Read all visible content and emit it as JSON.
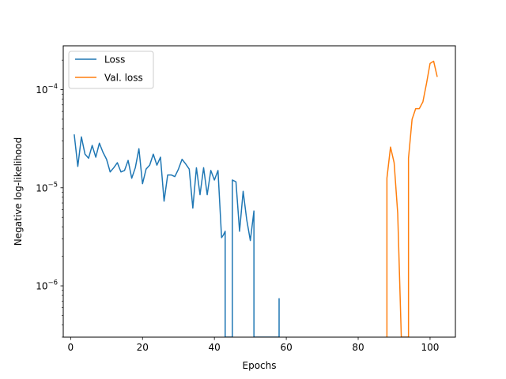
{
  "chart_data": {
    "type": "line",
    "title": "",
    "xlabel": "Epochs",
    "ylabel": "Negative log-likelihood",
    "xlim": [
      -2.05,
      107.05
    ],
    "ylim": [
      3e-07,
      0.00028
    ],
    "yscale": "log",
    "xticks": [
      0,
      20,
      40,
      60,
      80,
      100
    ],
    "yticks": [
      {
        "value": 1e-06,
        "base": "10",
        "exp": "−6"
      },
      {
        "value": 1e-05,
        "base": "10",
        "exp": "−5"
      },
      {
        "value": 0.0001,
        "base": "10",
        "exp": "−4"
      }
    ],
    "grid": false,
    "legend": "top-left",
    "series": [
      {
        "name": "Loss",
        "color": "#1f77b4",
        "points": [
          [
            1,
            3.5e-05
          ],
          [
            2,
            1.65e-05
          ],
          [
            3,
            3.3e-05
          ],
          [
            4,
            2.2e-05
          ],
          [
            5,
            2e-05
          ],
          [
            6,
            2.7e-05
          ],
          [
            7,
            2.05e-05
          ],
          [
            8,
            2.85e-05
          ],
          [
            9,
            2.3e-05
          ],
          [
            10,
            1.95e-05
          ],
          [
            11,
            1.45e-05
          ],
          [
            12,
            1.6e-05
          ],
          [
            13,
            1.8e-05
          ],
          [
            14,
            1.45e-05
          ],
          [
            15,
            1.5e-05
          ],
          [
            16,
            1.9e-05
          ],
          [
            17,
            1.25e-05
          ],
          [
            18,
            1.6e-05
          ],
          [
            19,
            2.5e-05
          ],
          [
            20,
            1.1e-05
          ],
          [
            21,
            1.55e-05
          ],
          [
            22,
            1.7e-05
          ],
          [
            23,
            2.2e-05
          ],
          [
            24,
            1.7e-05
          ],
          [
            25,
            2.05e-05
          ],
          [
            26,
            7.3e-06
          ],
          [
            27,
            1.35e-05
          ],
          [
            28,
            1.35e-05
          ],
          [
            29,
            1.3e-05
          ],
          [
            30,
            1.55e-05
          ],
          [
            31,
            1.95e-05
          ],
          [
            32,
            1.75e-05
          ],
          [
            33,
            1.55e-05
          ],
          [
            34,
            6.2e-06
          ],
          [
            35,
            1.6e-05
          ],
          [
            36,
            8.5e-06
          ],
          [
            37,
            1.6e-05
          ],
          [
            38,
            8.5e-06
          ],
          [
            39,
            1.5e-05
          ],
          [
            40,
            1.2e-05
          ],
          [
            41,
            1.5e-05
          ],
          [
            42,
            3.1e-06
          ],
          [
            42.5,
            3.3e-06
          ],
          [
            43,
            3.6e-06
          ],
          [
            43,
            3e-07
          ],
          [
            45,
            3e-07
          ],
          [
            45,
            1.2e-05
          ],
          [
            46,
            1.15e-05
          ],
          [
            47,
            3.6e-06
          ],
          [
            48,
            9.2e-06
          ],
          [
            49,
            4.7e-06
          ],
          [
            50,
            2.9e-06
          ],
          [
            51,
            5.8e-06
          ],
          [
            51,
            3e-07
          ],
          [
            58,
            3e-07
          ],
          [
            58,
            7.4e-07
          ],
          [
            58,
            3e-07
          ]
        ]
      },
      {
        "name": "Val. loss",
        "color": "#ff7f0e",
        "points": [
          [
            88,
            3e-07
          ],
          [
            88,
            1.25e-05
          ],
          [
            89,
            2.6e-05
          ],
          [
            90,
            1.8e-05
          ],
          [
            91,
            5.5e-06
          ],
          [
            92,
            3e-07
          ],
          [
            94,
            3e-07
          ],
          [
            94,
            2e-05
          ],
          [
            95,
            5e-05
          ],
          [
            96,
            6.4e-05
          ],
          [
            97,
            6.4e-05
          ],
          [
            98,
            7.5e-05
          ],
          [
            99,
            0.000115
          ],
          [
            100,
            0.000185
          ],
          [
            101,
            0.000195
          ],
          [
            102,
            0.000135
          ]
        ]
      }
    ]
  }
}
